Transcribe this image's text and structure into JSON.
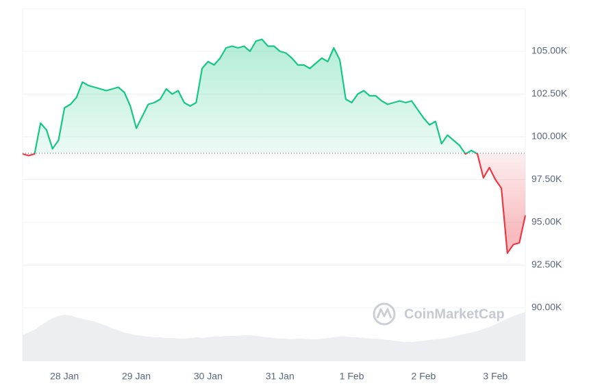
{
  "chart_data": [
    {
      "type": "line",
      "categories": [
        null,
        null,
        null,
        null,
        null,
        null,
        null,
        "28 Jan",
        null,
        null,
        null,
        null,
        null,
        null,
        null,
        null,
        null,
        null,
        null,
        "29 Jan",
        null,
        null,
        null,
        null,
        null,
        null,
        null,
        null,
        null,
        null,
        null,
        "30 Jan",
        null,
        null,
        null,
        null,
        null,
        null,
        null,
        null,
        null,
        null,
        null,
        "31 Jan",
        null,
        null,
        null,
        null,
        null,
        null,
        null,
        null,
        null,
        null,
        null,
        "1 Feb",
        null,
        null,
        null,
        null,
        null,
        null,
        null,
        null,
        null,
        null,
        null,
        "2 Feb",
        null,
        null,
        null,
        null,
        null,
        null,
        null,
        null,
        null,
        null,
        null,
        "3 Feb",
        null,
        null,
        null,
        null,
        null
      ],
      "values": [
        99000,
        98900,
        99000,
        100800,
        100400,
        99300,
        99800,
        101700,
        101900,
        102300,
        103200,
        103000,
        102900,
        102800,
        102700,
        102800,
        102900,
        102600,
        101800,
        100500,
        101200,
        101900,
        102000,
        102200,
        102800,
        102500,
        102700,
        102000,
        101800,
        102000,
        104000,
        104400,
        104200,
        104600,
        105200,
        105300,
        105200,
        105300,
        105000,
        105600,
        105700,
        105300,
        105300,
        105000,
        104900,
        104600,
        104200,
        104200,
        104000,
        104300,
        104600,
        104400,
        105200,
        104500,
        102200,
        102000,
        102500,
        102700,
        102400,
        102400,
        102100,
        101900,
        102000,
        102100,
        102000,
        102100,
        101600,
        101100,
        100700,
        100900,
        99600,
        100100,
        99800,
        99500,
        99000,
        99200,
        99000,
        97600,
        98200,
        97500,
        97000,
        93200,
        93700,
        93800,
        95400
      ],
      "baseline": 99040,
      "color_up": "#16c784",
      "color_down": "#ea3943",
      "ylim": [
        86880,
        107480
      ],
      "yticks": [
        {
          "value": 90000,
          "label": "90.00K"
        },
        {
          "value": 92500,
          "label": "92.50K"
        },
        {
          "value": 95000,
          "label": "95.00K"
        },
        {
          "value": 97500,
          "label": "97.50K"
        },
        {
          "value": 100000,
          "label": "100.00K"
        },
        {
          "value": 102500,
          "label": "102.50K"
        },
        {
          "value": 105000,
          "label": "105.00K"
        }
      ],
      "grid": true
    },
    {
      "type": "area",
      "values": [
        38,
        42,
        46,
        52,
        58,
        63,
        66,
        68,
        67,
        64,
        62,
        60,
        58,
        55,
        52,
        48,
        45,
        42,
        40,
        38,
        37,
        36,
        35,
        35,
        34,
        34,
        33,
        33,
        34,
        35,
        34,
        35,
        36,
        36,
        37,
        37,
        37,
        38,
        38,
        37,
        36,
        35,
        34,
        33,
        33,
        32,
        33,
        33,
        32,
        32,
        33,
        34,
        35,
        36,
        36,
        35,
        35,
        34,
        33,
        33,
        32,
        31,
        30,
        29,
        28,
        28,
        29,
        30,
        31,
        32,
        33,
        34,
        36,
        38,
        40,
        42,
        44,
        47,
        50,
        54,
        58,
        62,
        66,
        69,
        72
      ],
      "ylim": [
        0,
        100
      ],
      "color": "#eceef2"
    }
  ],
  "watermark": "CoinMarketCap"
}
